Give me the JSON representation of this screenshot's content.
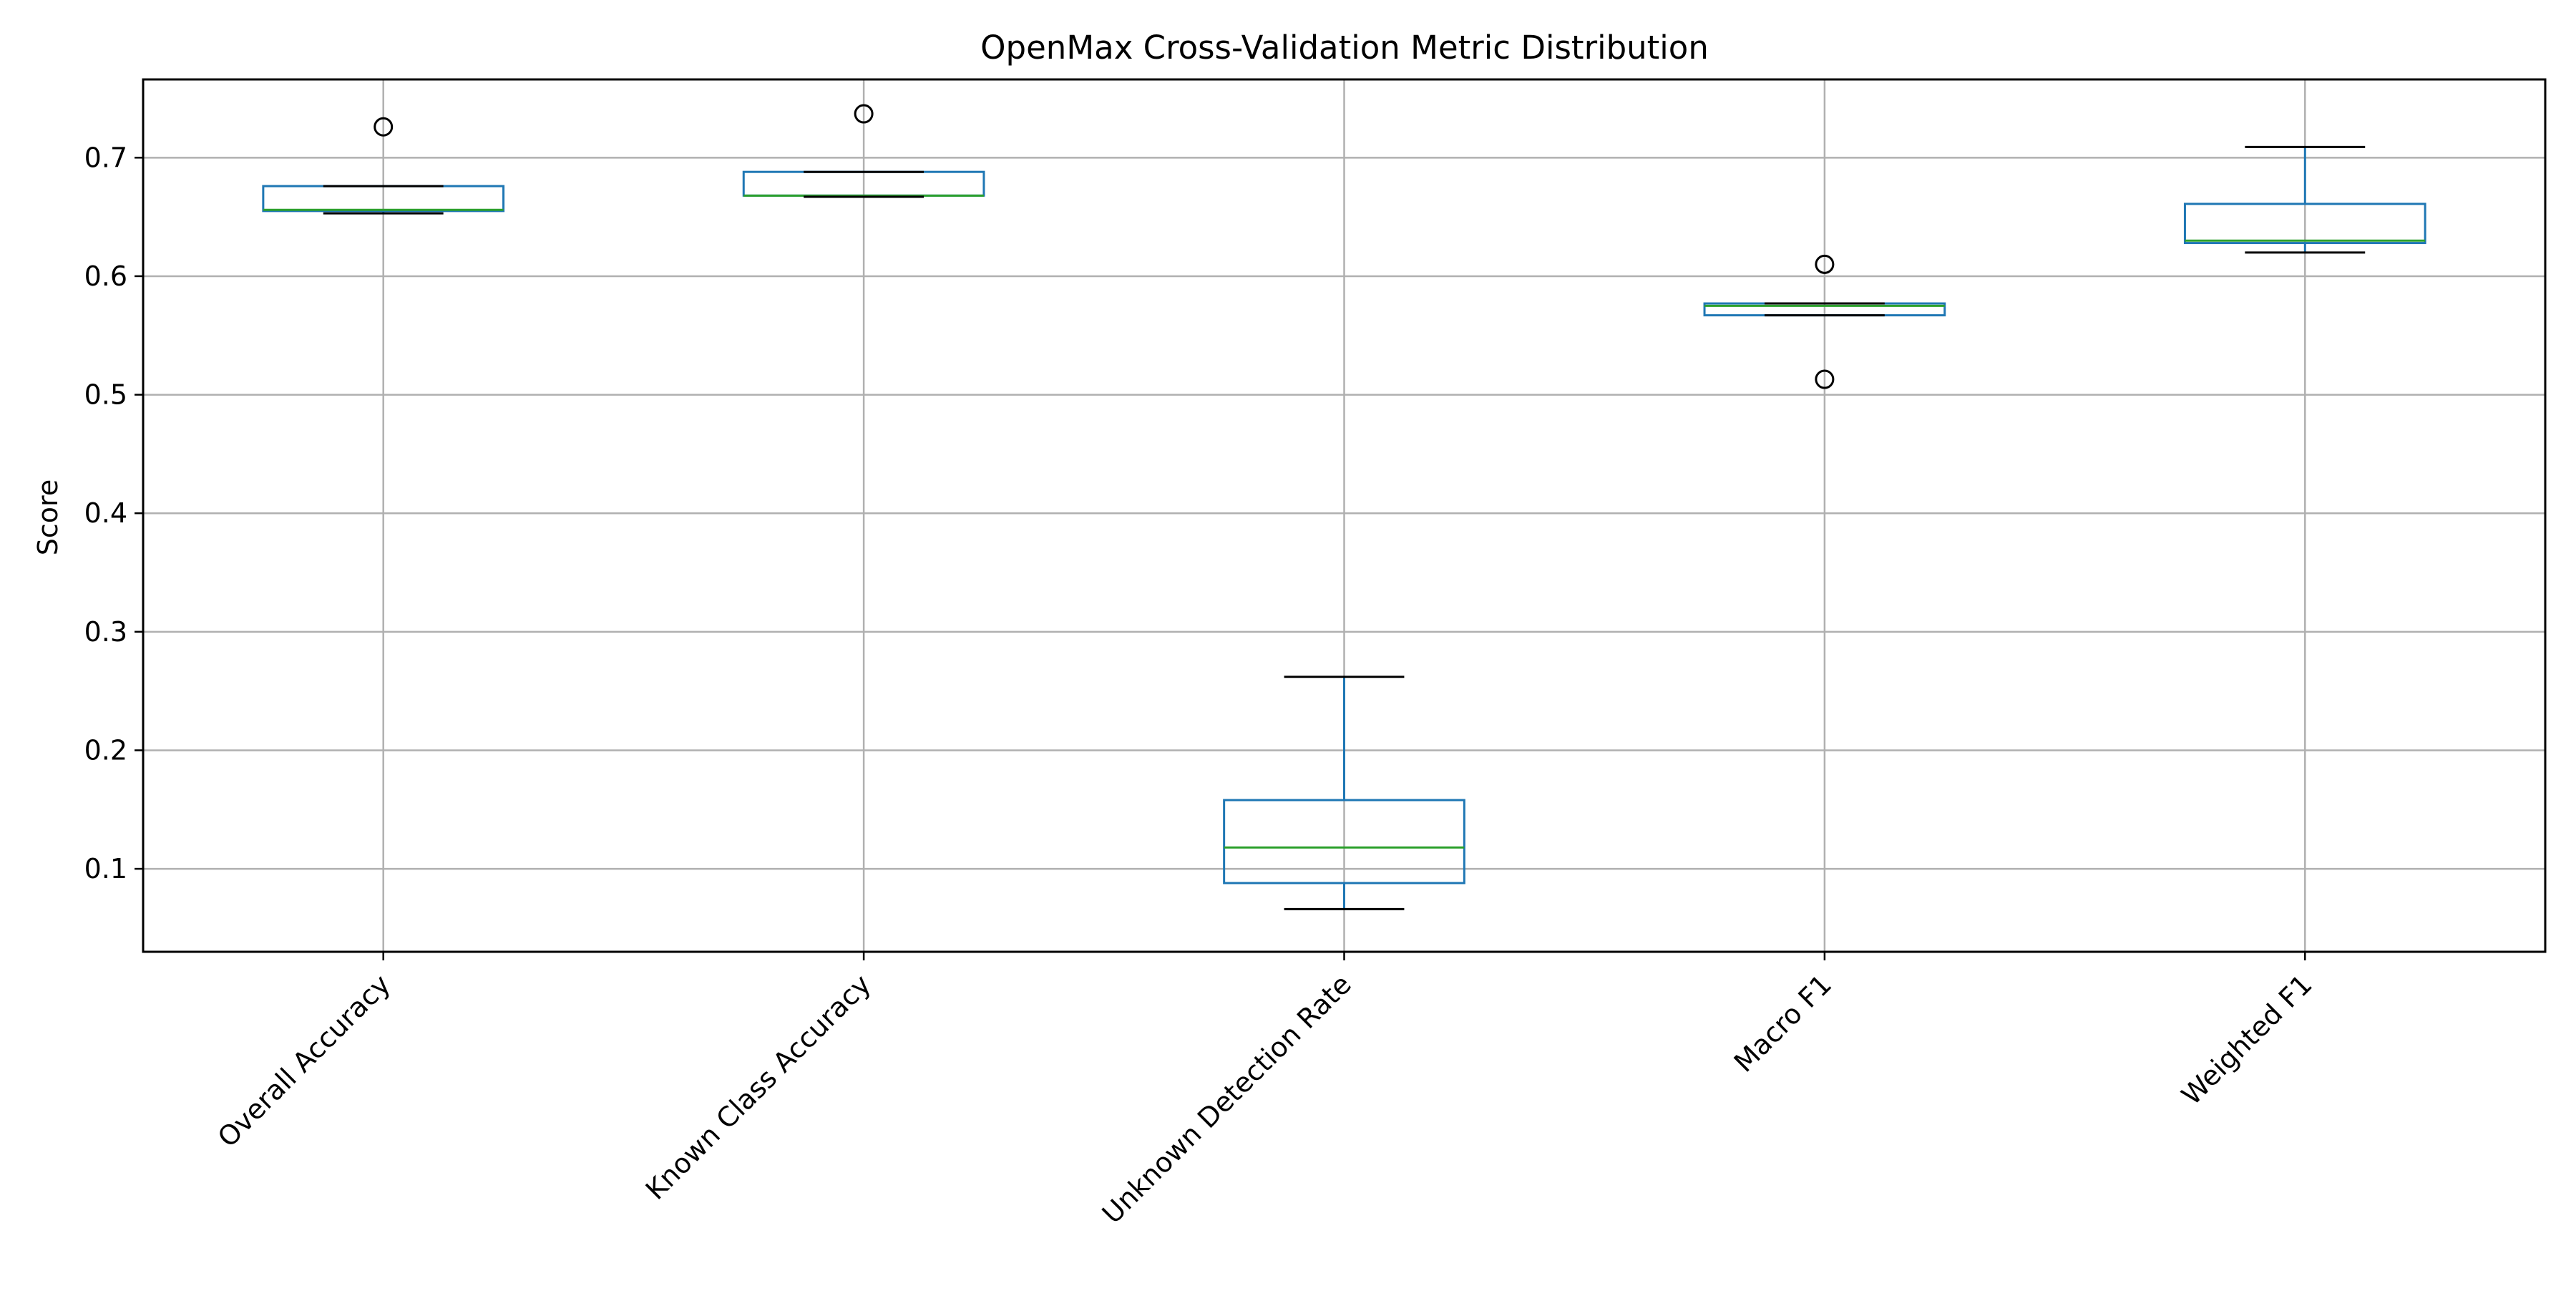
{
  "chart_data": {
    "type": "box",
    "title": "OpenMax Cross-Validation Metric Distribution",
    "xlabel": "",
    "ylabel": "Score",
    "ylim": [
      0.03,
      0.766
    ],
    "yticks": [
      0.1,
      0.2,
      0.3,
      0.4,
      0.5,
      0.6,
      0.7
    ],
    "grid": true,
    "categories": [
      "Overall Accuracy",
      "Known Class Accuracy",
      "Unknown Detection Rate",
      "Macro F1",
      "Weighted F1"
    ],
    "boxes": [
      {
        "category": "Overall Accuracy",
        "whisker_low": 0.653,
        "q1": 0.655,
        "median": 0.656,
        "q3": 0.676,
        "whisker_high": 0.676,
        "outliers": [
          0.726
        ]
      },
      {
        "category": "Known Class Accuracy",
        "whisker_low": 0.667,
        "q1": 0.668,
        "median": 0.668,
        "q3": 0.688,
        "whisker_high": 0.688,
        "outliers": [
          0.737
        ]
      },
      {
        "category": "Unknown Detection Rate",
        "whisker_low": 0.066,
        "q1": 0.088,
        "median": 0.118,
        "q3": 0.158,
        "whisker_high": 0.262,
        "outliers": []
      },
      {
        "category": "Macro F1",
        "whisker_low": 0.567,
        "q1": 0.567,
        "median": 0.575,
        "q3": 0.577,
        "whisker_high": 0.577,
        "outliers": [
          0.61,
          0.513
        ]
      },
      {
        "category": "Weighted F1",
        "whisker_low": 0.62,
        "q1": 0.628,
        "median": 0.63,
        "q3": 0.661,
        "whisker_high": 0.709,
        "outliers": []
      }
    ],
    "colors": {
      "box": "#1f77b4",
      "median": "#2ca02c",
      "cap": "#000000",
      "flier": "#000000",
      "grid": "#b0b0b0"
    }
  }
}
